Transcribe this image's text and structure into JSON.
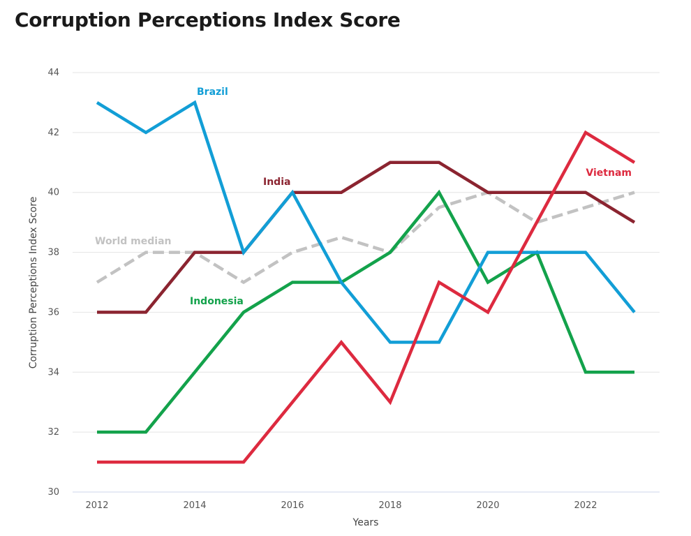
{
  "title": "Corruption Perceptions Index Score",
  "chart_data": {
    "type": "line",
    "title": "Corruption Perceptions Index Score",
    "xlabel": "Years",
    "ylabel": "Corruption Perceptions Index Score",
    "x": [
      2012,
      2013,
      2014,
      2015,
      2016,
      2017,
      2018,
      2019,
      2020,
      2021,
      2022,
      2023
    ],
    "xticks": [
      "2012",
      "2014",
      "2016",
      "2018",
      "2020",
      "2022"
    ],
    "yticks": [
      "30",
      "32",
      "34",
      "36",
      "38",
      "40",
      "42",
      "44"
    ],
    "xlim": [
      2012,
      2023
    ],
    "ylim": [
      30,
      44
    ],
    "grid": true,
    "legend": "none (direct labels)",
    "series": [
      {
        "name": "World median",
        "color": "#c2c2c2",
        "dashed": true,
        "values": [
          37,
          38,
          38,
          37,
          38,
          38.5,
          38,
          39.5,
          40,
          39,
          39.5,
          40
        ]
      },
      {
        "name": "India",
        "color": "#8b2430",
        "dashed": false,
        "values": [
          36,
          36,
          38,
          38,
          40,
          40,
          41,
          41,
          40,
          40,
          40,
          39
        ]
      },
      {
        "name": "Indonesia",
        "color": "#13a24b",
        "dashed": false,
        "values": [
          32,
          32,
          34,
          36,
          37,
          37,
          38,
          40,
          37,
          38,
          34,
          34
        ]
      },
      {
        "name": "Brazil",
        "color": "#129ed6",
        "dashed": false,
        "values": [
          43,
          42,
          43,
          38,
          40,
          37,
          35,
          35,
          38,
          38,
          38,
          36
        ]
      },
      {
        "name": "Vietnam",
        "color": "#dd2a3f",
        "dashed": false,
        "values": [
          31,
          31,
          31,
          31,
          33,
          35,
          33,
          37,
          36,
          39,
          42,
          41
        ]
      }
    ]
  }
}
